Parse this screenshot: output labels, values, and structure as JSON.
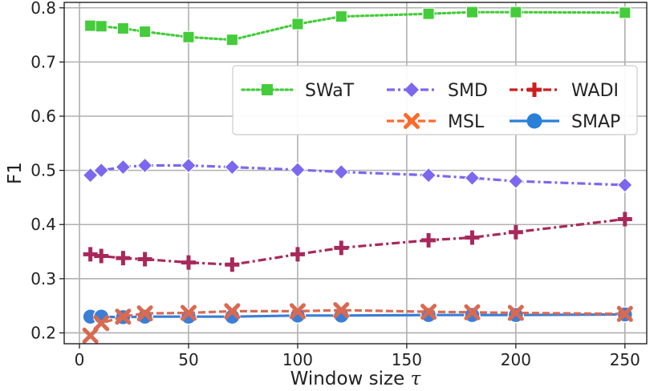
{
  "chart_data": {
    "type": "line",
    "title": "",
    "xlabel": "Window size",
    "xlabel_symbol": "τ",
    "ylabel": "F1",
    "xlim": [
      -7,
      260
    ],
    "ylim": [
      0.18,
      0.81
    ],
    "xticks": [
      0,
      50,
      100,
      150,
      200,
      250
    ],
    "yticks": [
      0.2,
      0.3,
      0.4,
      0.5,
      0.6,
      0.7,
      0.8
    ],
    "grid": true,
    "legend_position": "upper-right",
    "x": [
      5,
      10,
      20,
      30,
      50,
      70,
      100,
      120,
      160,
      180,
      200,
      250
    ],
    "series": [
      {
        "name": "SWaT",
        "color": "#44cc3a",
        "marker": "square",
        "dash": "dotted",
        "values": [
          0.767,
          0.766,
          0.762,
          0.756,
          0.746,
          0.741,
          0.77,
          0.784,
          0.789,
          0.792,
          0.792,
          0.791
        ]
      },
      {
        "name": "SMD",
        "color": "#7b68ee",
        "marker": "diamond",
        "dash": "dashdot",
        "values": [
          0.491,
          0.5,
          0.506,
          0.509,
          0.509,
          0.506,
          0.501,
          0.497,
          0.491,
          0.486,
          0.48,
          0.473
        ]
      },
      {
        "name": "WADI",
        "color": "#a8285c",
        "marker": "plus",
        "dash": "dashdot",
        "values": [
          0.345,
          0.342,
          0.338,
          0.336,
          0.33,
          0.326,
          0.345,
          0.357,
          0.371,
          0.376,
          0.386,
          0.41
        ]
      },
      {
        "name": "MSL",
        "color": "#d96a52",
        "marker": "x",
        "dash": "dashed",
        "values": [
          0.195,
          0.218,
          0.23,
          0.236,
          0.237,
          0.24,
          0.24,
          0.242,
          0.239,
          0.238,
          0.237,
          0.235
        ]
      },
      {
        "name": "SMAP",
        "color": "#3a7ed8",
        "marker": "circle",
        "dash": "solid",
        "values": [
          0.23,
          0.23,
          0.229,
          0.23,
          0.23,
          0.23,
          0.232,
          0.232,
          0.233,
          0.233,
          0.233,
          0.234
        ]
      }
    ],
    "legend": [
      {
        "name": "SWaT",
        "marker": "square",
        "color": "#44cc3a",
        "dash": "dotted"
      },
      {
        "name": "SMD",
        "marker": "diamond",
        "color": "#7b68ee",
        "dash": "dashdot"
      },
      {
        "name": "WADI",
        "marker": "plus",
        "color": "#cc1f1f",
        "dash": "dashdot"
      },
      {
        "name": "MSL",
        "marker": "x",
        "color": "#ff6a2a",
        "dash": "dashed"
      },
      {
        "name": "SMAP",
        "marker": "circle",
        "color": "#2a7fd8",
        "dash": "solid"
      }
    ]
  }
}
